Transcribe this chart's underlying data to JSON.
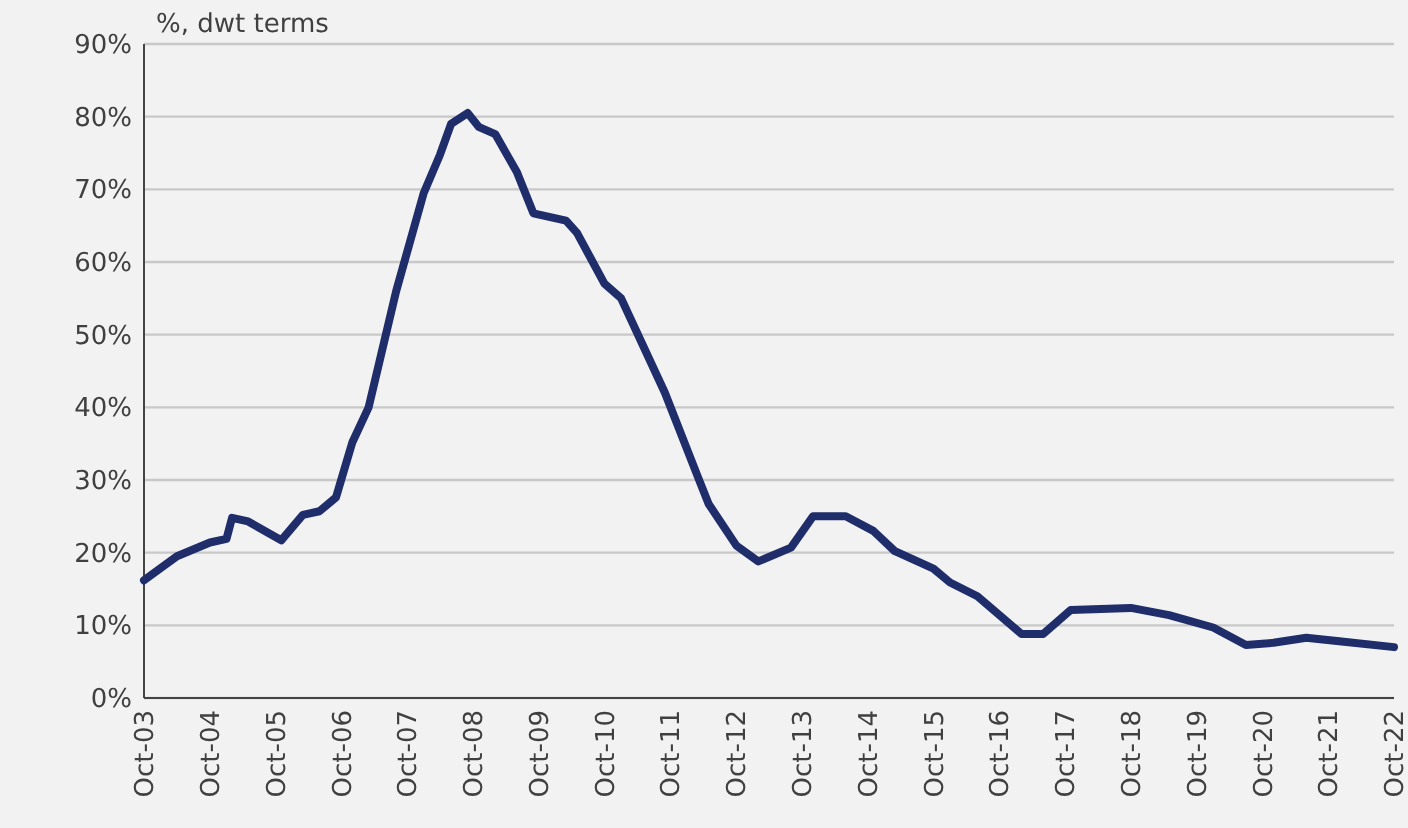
{
  "chart_data": {
    "type": "line",
    "ylabel": "%, dwt terms",
    "x": [
      "2003-10",
      "2004-04",
      "2004-10",
      "2005-01",
      "2005-02",
      "2005-05",
      "2005-11",
      "2006-03",
      "2006-06",
      "2006-09",
      "2006-12",
      "2007-03",
      "2007-08",
      "2008-01",
      "2008-04",
      "2008-06",
      "2008-09",
      "2008-11",
      "2009-02",
      "2009-06",
      "2009-09",
      "2010-03",
      "2010-05",
      "2010-10",
      "2011-01",
      "2011-09",
      "2012-03",
      "2012-05",
      "2012-10",
      "2013-02",
      "2013-08",
      "2013-12",
      "2014-06",
      "2014-11",
      "2015-03",
      "2015-10",
      "2016-01",
      "2016-06",
      "2017-02",
      "2017-06",
      "2017-11",
      "2018-10",
      "2019-05",
      "2020-01",
      "2020-07",
      "2020-12",
      "2021-06",
      "2021-12",
      "2022-10"
    ],
    "series": [
      {
        "color": "#1f2d6b",
        "values": [
          16.2,
          19.5,
          21.4,
          21.9,
          24.8,
          24.3,
          21.7,
          25.2,
          25.7,
          27.6,
          35.2,
          40,
          56,
          69.5,
          74.8,
          79,
          80.5,
          78.6,
          77.6,
          72.4,
          66.7,
          65.7,
          64,
          57,
          55,
          42,
          30.5,
          26.7,
          21,
          18.8,
          20.7,
          25,
          25,
          23,
          20.2,
          17.8,
          15.9,
          14,
          8.8,
          8.8,
          12.1,
          12.4,
          11.4,
          9.7,
          7.3,
          7.6,
          8.3,
          7.8,
          7.0
        ]
      }
    ],
    "xlim": [
      "2003-10",
      "2022-10"
    ],
    "xticks": [
      {
        "value": "2003-10",
        "label": "Oct-03"
      },
      {
        "value": "2004-10",
        "label": "Oct-04"
      },
      {
        "value": "2005-10",
        "label": "Oct-05"
      },
      {
        "value": "2006-10",
        "label": "Oct-06"
      },
      {
        "value": "2007-10",
        "label": "Oct-07"
      },
      {
        "value": "2008-10",
        "label": "Oct-08"
      },
      {
        "value": "2009-10",
        "label": "Oct-09"
      },
      {
        "value": "2010-10",
        "label": "Oct-10"
      },
      {
        "value": "2011-10",
        "label": "Oct-11"
      },
      {
        "value": "2012-10",
        "label": "Oct-12"
      },
      {
        "value": "2013-10",
        "label": "Oct-13"
      },
      {
        "value": "2014-10",
        "label": "Oct-14"
      },
      {
        "value": "2015-10",
        "label": "Oct-15"
      },
      {
        "value": "2016-10",
        "label": "Oct-16"
      },
      {
        "value": "2017-10",
        "label": "Oct-17"
      },
      {
        "value": "2018-10",
        "label": "Oct-18"
      },
      {
        "value": "2019-10",
        "label": "Oct-19"
      },
      {
        "value": "2020-10",
        "label": "Oct-20"
      },
      {
        "value": "2021-10",
        "label": "Oct-21"
      },
      {
        "value": "2022-10",
        "label": "Oct-22"
      }
    ],
    "ylim": [
      0,
      90
    ],
    "yticks": [
      {
        "value": 0,
        "label": "0%"
      },
      {
        "value": 10,
        "label": "10%"
      },
      {
        "value": 20,
        "label": "20%"
      },
      {
        "value": 30,
        "label": "30%"
      },
      {
        "value": 40,
        "label": "40%"
      },
      {
        "value": 50,
        "label": "50%"
      },
      {
        "value": 60,
        "label": "60%"
      },
      {
        "value": 70,
        "label": "70%"
      },
      {
        "value": 80,
        "label": "80%"
      },
      {
        "value": 90,
        "label": "90%"
      }
    ],
    "grid": "y",
    "line_style": "solid"
  }
}
